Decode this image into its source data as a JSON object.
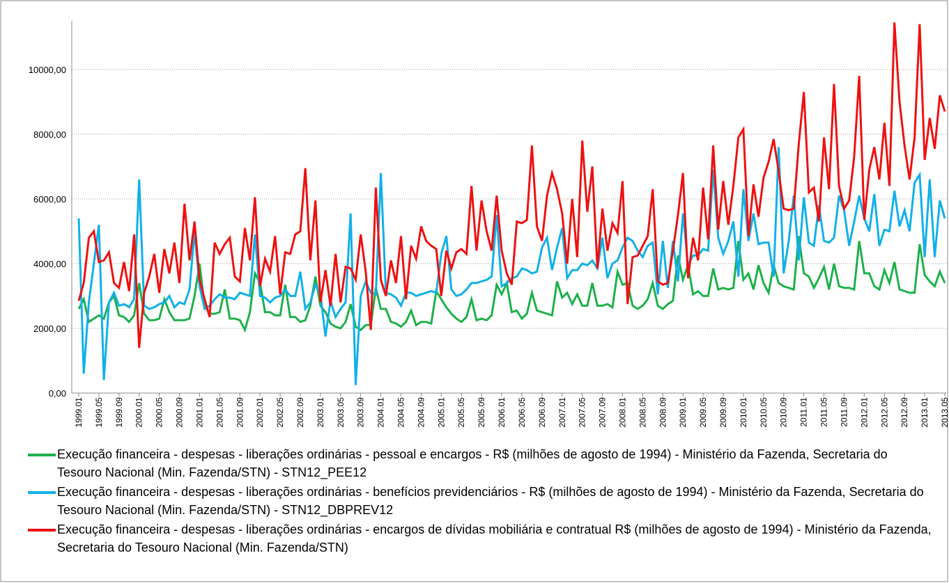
{
  "chart_data": {
    "type": "line",
    "categories": [
      "1999.01",
      null,
      null,
      null,
      "1999.05",
      null,
      null,
      null,
      "1999.09",
      null,
      null,
      null,
      "2000.01",
      null,
      null,
      null,
      "2000.05",
      null,
      null,
      null,
      "2000.09",
      null,
      null,
      null,
      "2001.01",
      null,
      null,
      null,
      "2001.05",
      null,
      null,
      null,
      "2001.09",
      null,
      null,
      null,
      "2002.01",
      null,
      null,
      null,
      "2002.05",
      null,
      null,
      null,
      "2002.09",
      null,
      null,
      null,
      "2003.01",
      null,
      null,
      null,
      "2003.05",
      null,
      null,
      null,
      "2003.09",
      null,
      null,
      null,
      "2004.01",
      null,
      null,
      null,
      "2004.05",
      null,
      null,
      null,
      "2004.09",
      null,
      null,
      null,
      "2005.01",
      null,
      null,
      null,
      "2005.05",
      null,
      null,
      null,
      "2005.09",
      null,
      null,
      null,
      "2006.01",
      null,
      null,
      null,
      "2006.05",
      null,
      null,
      null,
      "2006.09",
      null,
      null,
      null,
      "2007.01",
      null,
      null,
      null,
      "2007.05",
      null,
      null,
      null,
      "2007.09",
      null,
      null,
      null,
      "2008.01",
      null,
      null,
      null,
      "2008.05",
      null,
      null,
      null,
      "2008.09",
      null,
      null,
      null,
      "2009.01",
      null,
      null,
      null,
      "2009.05",
      null,
      null,
      null,
      "2009.09",
      null,
      null,
      null,
      "2010.01",
      null,
      null,
      null,
      "2010.05",
      null,
      null,
      null,
      "2010.09",
      null,
      null,
      null,
      "2011.01",
      null,
      null,
      null,
      "2011.05",
      null,
      null,
      null,
      "2011.09",
      null,
      null,
      null,
      "2012.01",
      null,
      null,
      null,
      "2012.05",
      null,
      null,
      null,
      "2012.09",
      null,
      null,
      null,
      "2013.01",
      null,
      null,
      null,
      "2013.05"
    ],
    "series": [
      {
        "name": "Execução financeira - despesas - liberações ordinárias - pessoal e encargos - R$ (milhões de agosto de 1994) - Ministério da Fazenda, Secretaria do Tesouro Nacional (Min. Fazenda/STN) - STN12_PEE12",
        "color": "#1db04a",
        "values": [
          2600,
          2900,
          2200,
          2300,
          2400,
          2300,
          2800,
          3000,
          2400,
          2350,
          2200,
          2400,
          3400,
          2450,
          2250,
          2250,
          2300,
          2900,
          2500,
          2250,
          2250,
          2250,
          2300,
          3000,
          4000,
          2700,
          2450,
          2450,
          2500,
          3200,
          2300,
          2300,
          2250,
          1950,
          2500,
          3700,
          3400,
          2500,
          2500,
          2400,
          2400,
          3350,
          2350,
          2350,
          2200,
          2250,
          2700,
          3600,
          2700,
          2500,
          2150,
          2050,
          2000,
          2200,
          2750,
          2050,
          1950,
          2100,
          2100,
          3250,
          2600,
          2600,
          2200,
          2150,
          2050,
          2200,
          2550,
          2100,
          2200,
          2200,
          2150,
          3150,
          2900,
          2650,
          2450,
          2300,
          2200,
          2350,
          2900,
          2250,
          2300,
          2250,
          2400,
          3350,
          3050,
          3400,
          2500,
          2550,
          2300,
          2450,
          3100,
          2550,
          2500,
          2450,
          2400,
          3450,
          2950,
          3100,
          2750,
          3050,
          2700,
          2700,
          3400,
          2700,
          2700,
          2750,
          2650,
          3750,
          3350,
          3400,
          2700,
          2600,
          2700,
          2900,
          3400,
          2700,
          2600,
          2750,
          2850,
          4250,
          3500,
          3950,
          3050,
          3150,
          3000,
          3000,
          3850,
          3200,
          3250,
          3200,
          3250,
          4700,
          3500,
          3700,
          3200,
          3950,
          3400,
          3100,
          3950,
          3400,
          3300,
          3250,
          3200,
          4850,
          3700,
          3600,
          3250,
          3550,
          3900,
          3200,
          4000,
          3300,
          3250,
          3250,
          3200,
          4700,
          3700,
          3700,
          3300,
          3200,
          3800,
          3400,
          4050,
          3200,
          3150,
          3100,
          3100,
          4600,
          3650,
          3450,
          3300,
          3750,
          3400
        ]
      },
      {
        "name": "Execução financeira - despesas - liberações ordinárias - benefícios previdenciários - R$ (milhões de agosto de 1994) - Ministério da Fazenda, Secretaria do Tesouro Nacional (Min. Fazenda/STN) - STN12_DBPREV12",
        "color": "#11b0e8",
        "values": [
          5400,
          600,
          2800,
          4000,
          5200,
          400,
          2800,
          3100,
          2700,
          2750,
          2650,
          2900,
          6600,
          2700,
          2600,
          2650,
          2750,
          2800,
          3000,
          2650,
          2800,
          2750,
          3200,
          5000,
          3300,
          2600,
          2700,
          2900,
          3050,
          2950,
          2950,
          2900,
          3100,
          3050,
          3000,
          4900,
          3000,
          2950,
          2800,
          2950,
          3000,
          3200,
          3000,
          3000,
          3750,
          2600,
          2800,
          3350,
          3050,
          1750,
          2850,
          2350,
          2600,
          2800,
          5550,
          250,
          3000,
          3450,
          3100,
          3050,
          6800,
          3100,
          3050,
          2950,
          2700,
          3100,
          3100,
          3000,
          3050,
          3100,
          3150,
          3100,
          4300,
          4850,
          3200,
          3000,
          3050,
          3200,
          3400,
          3400,
          3450,
          3500,
          3600,
          5500,
          3300,
          3400,
          3550,
          3600,
          3850,
          3800,
          3700,
          3750,
          4500,
          4800,
          3800,
          4500,
          5100,
          3550,
          3800,
          3800,
          4000,
          3950,
          4100,
          3850,
          4800,
          3550,
          4000,
          4100,
          4500,
          4800,
          4700,
          4400,
          4200,
          4550,
          4650,
          3050,
          4700,
          3250,
          4700,
          3450,
          5550,
          3950,
          4250,
          4250,
          4450,
          4400,
          6900,
          4800,
          4300,
          4700,
          5300,
          3600,
          6300,
          4700,
          5550,
          4600,
          4650,
          4650,
          3600,
          7600,
          3700,
          4700,
          6100,
          4100,
          6050,
          4650,
          4550,
          5800,
          4700,
          4650,
          4800,
          6100,
          5650,
          4550,
          5300,
          6100,
          5400,
          5000,
          6150,
          4550,
          5050,
          5000,
          6250,
          5150,
          5650,
          5000,
          6500,
          6750,
          4200,
          6600,
          4200,
          5950,
          5400
        ]
      },
      {
        "name": "Execução financeira - despesas - liberações ordinárias - encargos de dívidas mobiliária e contratual R$ (milhões de agosto de 1994) - Ministério da Fazenda, Secretaria do Tesouro Nacional (Min. Fazenda/STN)",
        "color": "#ee1111",
        "values": [
          2850,
          3400,
          4800,
          5000,
          4050,
          4100,
          4350,
          3400,
          3250,
          4050,
          3150,
          4900,
          1400,
          3100,
          3600,
          4300,
          3100,
          4450,
          3700,
          4650,
          3400,
          5850,
          4100,
          5300,
          3500,
          2900,
          2350,
          4650,
          4300,
          4600,
          4800,
          3600,
          3450,
          5100,
          4100,
          6050,
          3300,
          4150,
          3750,
          4850,
          3050,
          4350,
          4300,
          4900,
          5000,
          6950,
          4100,
          5950,
          2800,
          3800,
          2700,
          4300,
          2800,
          3900,
          3850,
          3500,
          4900,
          3750,
          1950,
          6350,
          3500,
          3000,
          4100,
          3400,
          4850,
          2900,
          4550,
          4150,
          5150,
          4700,
          4550,
          4450,
          3000,
          4400,
          3850,
          4350,
          4450,
          4300,
          6400,
          4400,
          5950,
          5000,
          4400,
          6100,
          4400,
          3700,
          3350,
          5300,
          5250,
          5350,
          7650,
          5150,
          4700,
          6100,
          6800,
          6300,
          5550,
          4000,
          6000,
          4200,
          7800,
          5600,
          7000,
          3850,
          5700,
          4400,
          5250,
          4950,
          6550,
          2750,
          4200,
          4250,
          4550,
          4850,
          6300,
          3450,
          3350,
          3400,
          4400,
          5500,
          6800,
          3550,
          4800,
          4100,
          6350,
          4750,
          7650,
          5050,
          6550,
          5200,
          6400,
          7900,
          8150,
          4850,
          6450,
          5450,
          6650,
          7150,
          7850,
          6850,
          5700,
          5650,
          5700,
          7700,
          9300,
          6200,
          6350,
          5300,
          7900,
          6300,
          9550,
          6400,
          5700,
          5950,
          7300,
          9800,
          5350,
          6900,
          7600,
          6600,
          8350,
          6400,
          11450,
          9000,
          7650,
          6600,
          7900,
          11400,
          7200,
          8500,
          7550,
          9200,
          8700
        ]
      }
    ],
    "ylim": [
      0,
      11500
    ],
    "yticks": [
      {
        "value": 0,
        "label": "0,00"
      },
      {
        "value": 2000,
        "label": "2000,00"
      },
      {
        "value": 4000,
        "label": "4000,00"
      },
      {
        "value": 6000,
        "label": "6000,00"
      },
      {
        "value": 8000,
        "label": "8000,00"
      },
      {
        "value": 10000,
        "label": "10000,00"
      }
    ],
    "grid": true
  }
}
